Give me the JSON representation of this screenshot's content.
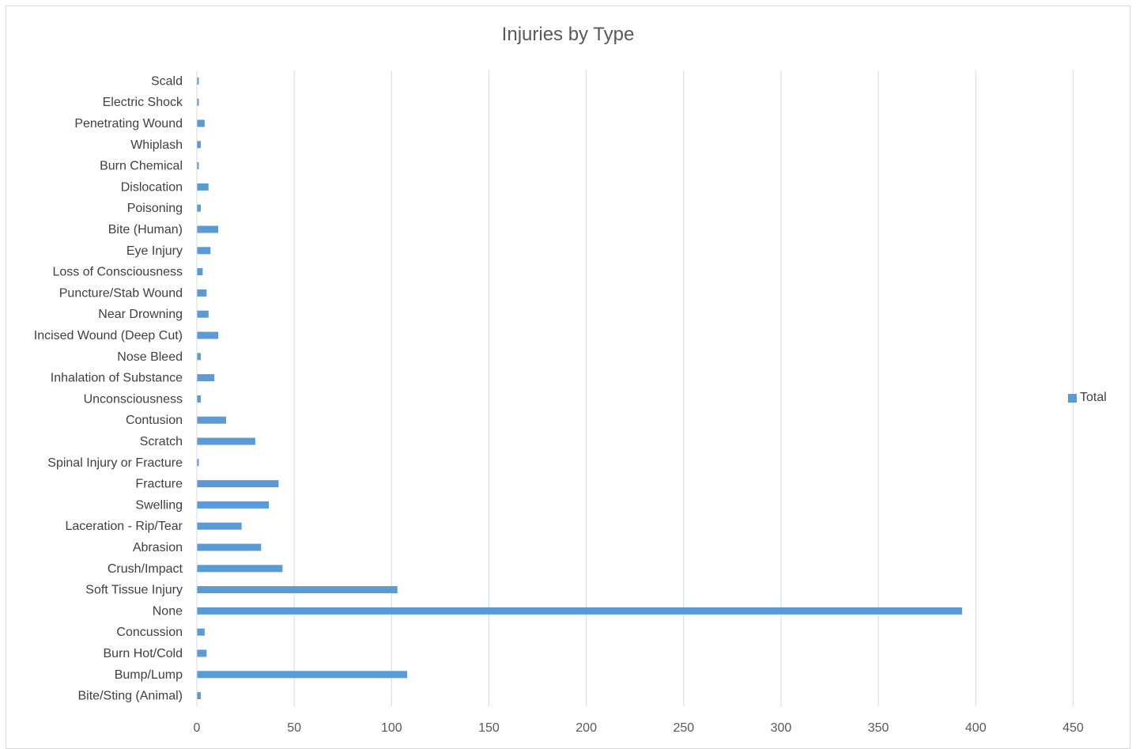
{
  "chart_data": {
    "type": "bar",
    "orientation": "horizontal",
    "title": "Injuries by Type",
    "xlabel": "",
    "ylabel": "",
    "xlim": [
      0,
      475
    ],
    "xticks": [
      0,
      50,
      100,
      150,
      200,
      250,
      300,
      350,
      400,
      450
    ],
    "grid": true,
    "legend_position": "right",
    "categories": [
      "Bite/Sting (Animal)",
      "Bump/Lump",
      "Burn Hot/Cold",
      "Concussion",
      "None",
      "Soft Tissue Injury",
      "Crush/Impact",
      "Abrasion",
      "Laceration - Rip/Tear",
      "Swelling",
      "Fracture",
      "Spinal Injury or Fracture",
      "Scratch",
      "Contusion",
      "Unconsciousness",
      "Inhalation of Substance",
      "Nose Bleed",
      "Incised Wound (Deep Cut)",
      "Near Drowning",
      "Puncture/Stab Wound",
      "Loss of Consciousness",
      "Eye Injury",
      "Bite (Human)",
      "Poisoning",
      "Dislocation",
      "Burn Chemical",
      "Whiplash",
      "Penetrating Wound",
      "Electric Shock",
      "Scald"
    ],
    "series": [
      {
        "name": "Total",
        "color": "#5b9bd5",
        "values": [
          2,
          108,
          5,
          4,
          393,
          103,
          44,
          33,
          23,
          37,
          42,
          1,
          30,
          15,
          2,
          9,
          2,
          11,
          6,
          5,
          3,
          7,
          11,
          2,
          6,
          1,
          2,
          4,
          1,
          1
        ]
      }
    ]
  }
}
